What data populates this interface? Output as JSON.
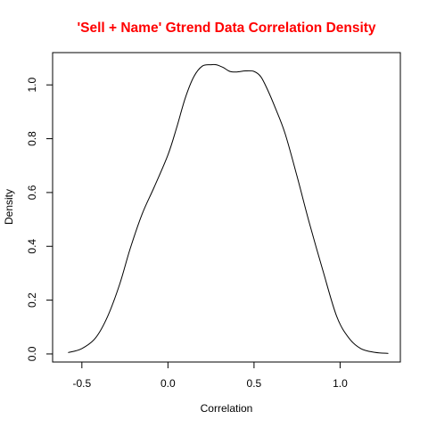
{
  "chart_data": {
    "type": "line",
    "title": "'Sell + Name' Gtrend Data Correlation Density",
    "title_color": "#ff0000",
    "xlabel": "Correlation",
    "ylabel": "Density",
    "xlim": [
      -0.67,
      1.35
    ],
    "ylim": [
      -0.03,
      1.12
    ],
    "x_ticks": [
      -0.5,
      0.0,
      0.5,
      1.0
    ],
    "x_tick_labels": [
      "-0.5",
      "0.0",
      "0.5",
      "1.0"
    ],
    "y_ticks": [
      0.0,
      0.2,
      0.4,
      0.6,
      0.8,
      1.0
    ],
    "y_tick_labels": [
      "0.0",
      "0.2",
      "0.4",
      "0.6",
      "0.8",
      "1.0"
    ],
    "grid": false,
    "line_color": "#000000",
    "series": [
      {
        "x": [
          -0.58,
          -0.5,
          -0.42,
          -0.35,
          -0.28,
          -0.22,
          -0.15,
          -0.08,
          0.0,
          0.05,
          0.1,
          0.15,
          0.2,
          0.25,
          0.28,
          0.32,
          0.36,
          0.4,
          0.45,
          0.5,
          0.54,
          0.58,
          0.62,
          0.68,
          0.75,
          0.82,
          0.9,
          0.98,
          1.05,
          1.12,
          1.2,
          1.28
        ],
        "y": [
          0.005,
          0.02,
          0.06,
          0.14,
          0.26,
          0.39,
          0.52,
          0.62,
          0.74,
          0.84,
          0.95,
          1.03,
          1.07,
          1.075,
          1.075,
          1.065,
          1.05,
          1.048,
          1.052,
          1.05,
          1.03,
          0.98,
          0.92,
          0.82,
          0.66,
          0.49,
          0.31,
          0.14,
          0.06,
          0.02,
          0.006,
          0.002
        ]
      }
    ]
  }
}
